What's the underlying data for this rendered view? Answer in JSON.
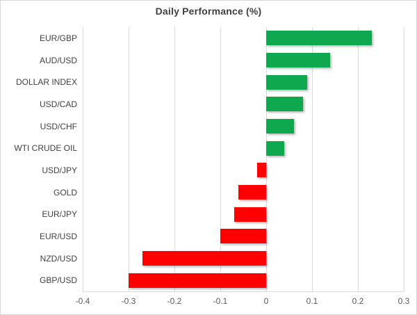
{
  "title": "Daily Performance (%)",
  "colors": {
    "positive_bar": "#0fa84e",
    "negative_bar": "#fe0000",
    "gridline": "#d9d9d9",
    "title_text": "#3f3f3f",
    "category_text": "#3f3f3f",
    "axis_text": "#595959",
    "frame_border": "#d8d8d8",
    "background": "#ffffff"
  },
  "chart_data": {
    "type": "bar",
    "orientation": "horizontal",
    "title": "Daily Performance (%)",
    "categories": [
      "EUR/GBP",
      "AUD/USD",
      "DOLLAR INDEX",
      "USD/CAD",
      "USD/CHF",
      "WTI CRUDE OIL",
      "USD/JPY",
      "GOLD",
      "EUR/JPY",
      "EUR/USD",
      "NZD/USD",
      "GBP/USD"
    ],
    "values": [
      0.23,
      0.14,
      0.09,
      0.08,
      0.06,
      0.04,
      -0.02,
      -0.06,
      -0.07,
      -0.1,
      -0.27,
      -0.3
    ],
    "xlabel": "",
    "ylabel": "",
    "xlim": [
      -0.4,
      0.3
    ],
    "xticks": [
      -0.4,
      -0.3,
      -0.2,
      -0.1,
      0,
      0.1,
      0.2,
      0.3
    ],
    "xtick_labels": [
      "-0.4",
      "-0.3",
      "-0.2",
      "-0.1",
      "0",
      "0.1",
      "0.2",
      "0.3"
    ],
    "grid": true,
    "legend": false
  }
}
